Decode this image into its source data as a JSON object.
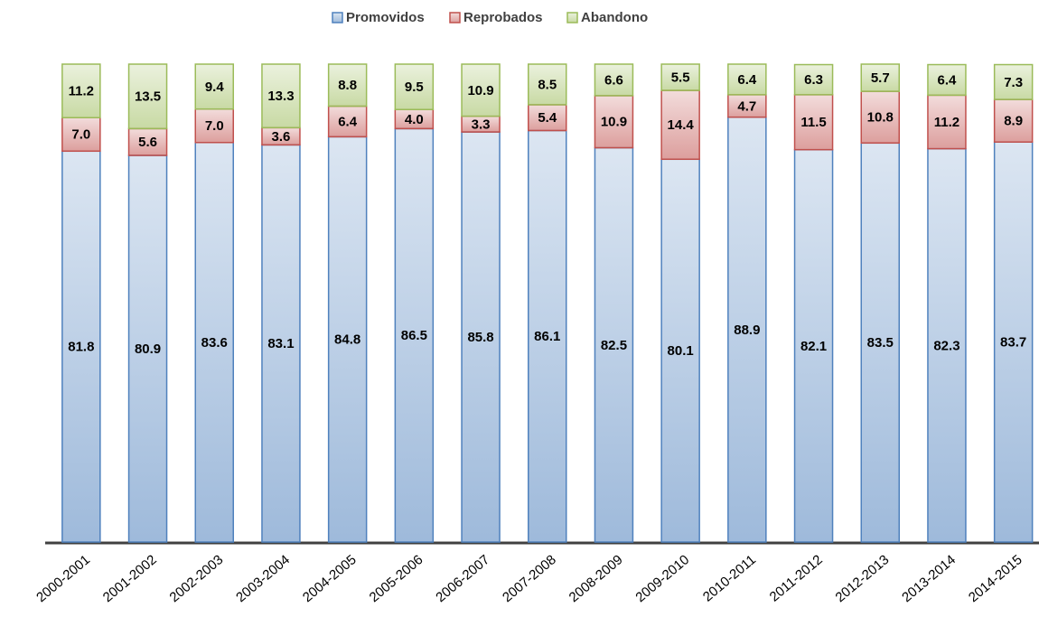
{
  "chart_data": {
    "type": "bar",
    "stacked": true,
    "categories": [
      "2000-2001",
      "2001-2002",
      "2002-2003",
      "2003-2004",
      "2004-2005",
      "2005-2006",
      "2006-2007",
      "2007-2008",
      "2008-2009",
      "2009-2010",
      "2010-2011",
      "2011-2012",
      "2012-2013",
      "2013-2014",
      "2014-2015"
    ],
    "series": [
      {
        "name": "Promovidos",
        "color": "#4f81bd",
        "values": [
          81.8,
          80.9,
          83.6,
          83.1,
          84.8,
          86.5,
          85.8,
          86.1,
          82.5,
          80.1,
          88.9,
          82.1,
          83.5,
          82.3,
          83.7
        ]
      },
      {
        "name": "Reprobados",
        "color": "#c0504d",
        "values": [
          7.0,
          5.6,
          7.0,
          3.6,
          6.4,
          4.0,
          3.3,
          5.4,
          10.9,
          14.4,
          4.7,
          11.5,
          10.8,
          11.2,
          8.9
        ],
        "value_labels": [
          "7.0",
          "5.6",
          "7.0",
          "3.6",
          "6.4",
          "4.0",
          "3.3",
          "5.4",
          "10.9",
          "14.4",
          "4.7",
          "11.5",
          "10.8",
          "11.2",
          "8.9"
        ]
      },
      {
        "name": "Abandono",
        "color": "#9bbb59",
        "values": [
          11.2,
          13.5,
          9.4,
          13.3,
          8.8,
          9.5,
          10.9,
          8.5,
          6.6,
          5.5,
          6.4,
          6.3,
          5.7,
          6.4,
          7.3
        ]
      }
    ],
    "ylim": [
      0,
      100
    ],
    "legend": "top"
  }
}
